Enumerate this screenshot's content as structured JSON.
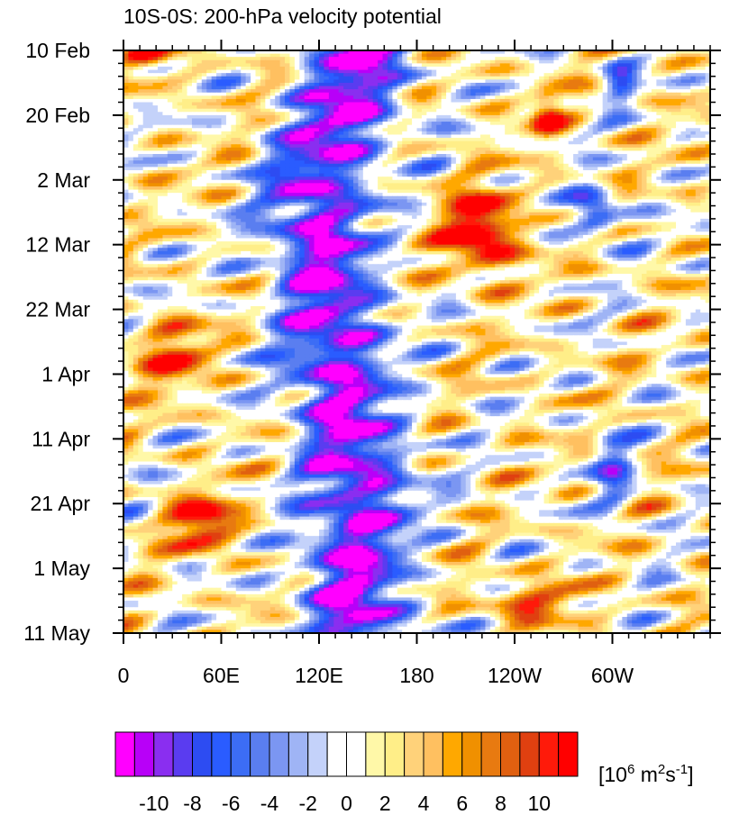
{
  "chart_data": {
    "type": "heatmap",
    "title": "10S-0S: 200-hPa velocity potential",
    "units": "[10^6 m^2s^-1]",
    "units_parts": {
      "open": "[10",
      "exp1": "6",
      "mid": " m",
      "exp2": "2",
      "s": "s",
      "exp3": "-1",
      "close": "]"
    },
    "x_axis": {
      "range_lon_east": [
        0,
        360
      ],
      "ticks": [
        {
          "lon": 0,
          "label": "0"
        },
        {
          "lon": 60,
          "label": "60E"
        },
        {
          "lon": 120,
          "label": "120E"
        },
        {
          "lon": 180,
          "label": "180"
        },
        {
          "lon": 240,
          "label": "120W"
        },
        {
          "lon": 300,
          "label": "60W"
        }
      ],
      "minor_step": 10
    },
    "y_axis": {
      "range_days": [
        0,
        90
      ],
      "orientation": "time increases downward",
      "ticks": [
        {
          "day": 0,
          "label": "10 Feb"
        },
        {
          "day": 10,
          "label": "20 Feb"
        },
        {
          "day": 20,
          "label": "2 Mar"
        },
        {
          "day": 30,
          "label": "12 Mar"
        },
        {
          "day": 40,
          "label": "22 Mar"
        },
        {
          "day": 50,
          "label": "1 Apr"
        },
        {
          "day": 60,
          "label": "11 Apr"
        },
        {
          "day": 70,
          "label": "21 Apr"
        },
        {
          "day": 80,
          "label": "1 May"
        },
        {
          "day": 90,
          "label": "11 May"
        }
      ],
      "minor_step": 2
    },
    "colorbar": {
      "levels": [
        -11,
        -10,
        -9,
        -8,
        -7,
        -6,
        -5,
        -4,
        -3,
        -2,
        -1,
        0,
        1,
        2,
        3,
        4,
        5,
        6,
        7,
        8,
        9,
        10,
        11
      ],
      "colors": [
        "#ff00ff",
        "#b800f8",
        "#8a2ef0",
        "#5a3cf0",
        "#2d4cf2",
        "#2a5cff",
        "#3c6df5",
        "#5a7ef0",
        "#7b96f2",
        "#9fb4f5",
        "#c4d2fa",
        "#ffffff",
        "#ffffff",
        "#fff8a8",
        "#ffee88",
        "#ffd27a",
        "#ffc060",
        "#ffa800",
        "#f09000",
        "#e87a10",
        "#e06010",
        "#e04010",
        "#ff1a0a",
        "#ff0000"
      ],
      "labels": [
        {
          "value": -10,
          "label": "-10"
        },
        {
          "value": -8,
          "label": "-8"
        },
        {
          "value": -6,
          "label": "-6"
        },
        {
          "value": -4,
          "label": "-4"
        },
        {
          "value": -2,
          "label": "-2"
        },
        {
          "value": 0,
          "label": "0"
        },
        {
          "value": 2,
          "label": "2"
        },
        {
          "value": 4,
          "label": "4"
        },
        {
          "value": 6,
          "label": "6"
        },
        {
          "value": 8,
          "label": "8"
        },
        {
          "value": 10,
          "label": "10"
        }
      ]
    },
    "features": {
      "neg_core_center_lon_by_day": [
        [
          0,
          145
        ],
        [
          10,
          135
        ],
        [
          20,
          118
        ],
        [
          30,
          120
        ],
        [
          40,
          128
        ],
        [
          50,
          130
        ],
        [
          60,
          140
        ],
        [
          70,
          145
        ],
        [
          80,
          140
        ],
        [
          90,
          145
        ]
      ],
      "neg_core_half_width_deg": 30,
      "blobs": [
        {
          "lon": 220,
          "day": 28,
          "rx": 22,
          "ry": 6,
          "amp": 13
        },
        {
          "lon": 260,
          "day": 10,
          "rx": 10,
          "ry": 3,
          "amp": 9
        },
        {
          "lon": 50,
          "day": 73,
          "rx": 20,
          "ry": 4,
          "amp": 11
        },
        {
          "lon": 15,
          "day": 1,
          "rx": 15,
          "ry": 2,
          "amp": 9
        },
        {
          "lon": 290,
          "day": 25,
          "rx": 14,
          "ry": 4,
          "amp": -10
        },
        {
          "lon": 305,
          "day": 5,
          "rx": 10,
          "ry": 3,
          "amp": -8
        },
        {
          "lon": 300,
          "day": 65,
          "rx": 12,
          "ry": 6,
          "amp": -7
        },
        {
          "lon": 250,
          "day": 85,
          "rx": 30,
          "ry": 3,
          "amp": 7
        },
        {
          "lon": 30,
          "day": 47,
          "rx": 25,
          "ry": 5,
          "amp": 7
        }
      ]
    }
  }
}
